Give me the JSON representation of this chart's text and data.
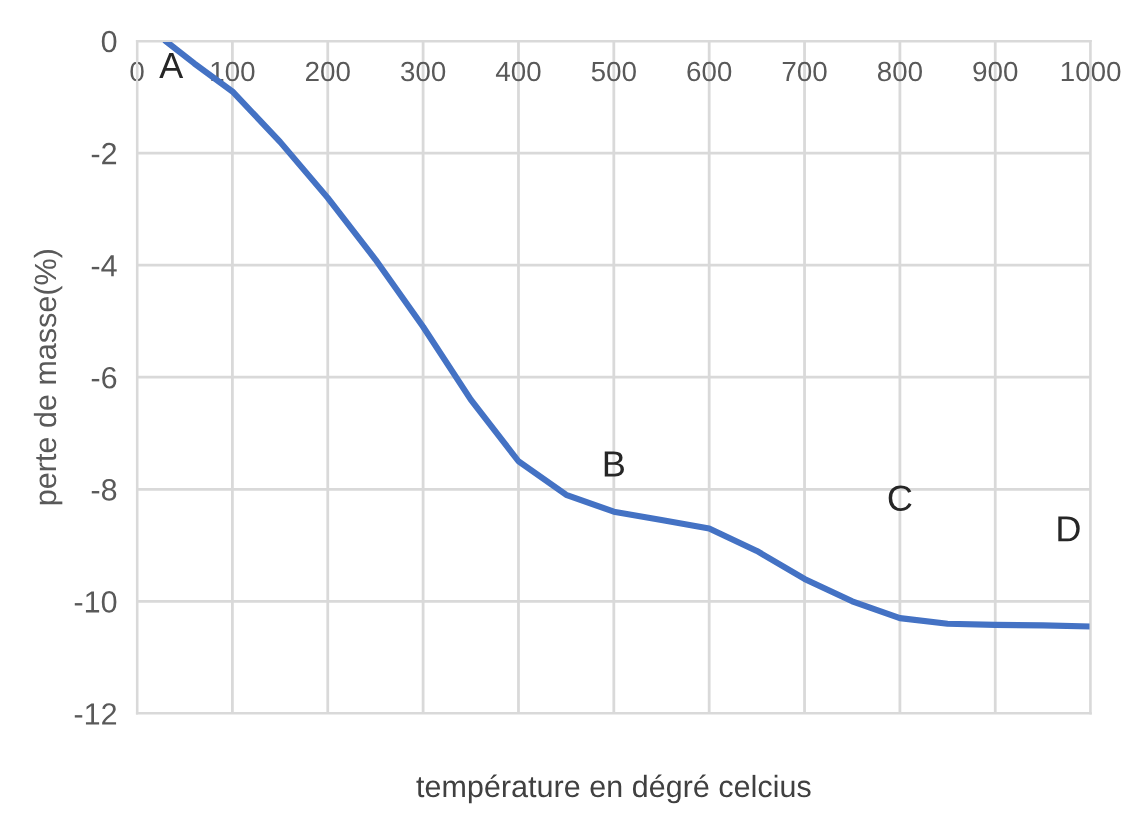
{
  "chart_data": {
    "type": "line",
    "xlabel": "température en dégré celcius",
    "ylabel": "perte de masse(%)",
    "series": [
      {
        "color": "#4472c4",
        "x": [
          30,
          60,
          100,
          150,
          200,
          250,
          300,
          350,
          400,
          450,
          500,
          550,
          600,
          650,
          700,
          750,
          800,
          850,
          900,
          950,
          1000
        ],
        "values": [
          0,
          -0.4,
          -0.9,
          -1.8,
          -2.8,
          -3.9,
          -5.1,
          -6.4,
          -7.5,
          -8.1,
          -8.4,
          -8.55,
          -8.7,
          -9.1,
          -9.6,
          -10.0,
          -10.3,
          -10.4,
          -10.42,
          -10.43,
          -10.45
        ]
      }
    ],
    "xlim": [
      0,
      1000
    ],
    "xticks": [
      0,
      100,
      200,
      300,
      400,
      500,
      600,
      700,
      800,
      900,
      1000
    ],
    "ylim": [
      -12,
      0
    ],
    "yticks": [
      -12,
      -10,
      -8,
      -6,
      -4,
      -2,
      0
    ],
    "grid": true,
    "marker": "none",
    "line_style": "solid",
    "annotations": [
      {
        "text": "A",
        "x": 30,
        "y": 0
      },
      {
        "text": "B",
        "x": 500,
        "y": -8.4
      },
      {
        "text": "C",
        "x": 800,
        "y": -10.3
      },
      {
        "text": "D",
        "x": 1000,
        "y": -10.45
      }
    ]
  }
}
